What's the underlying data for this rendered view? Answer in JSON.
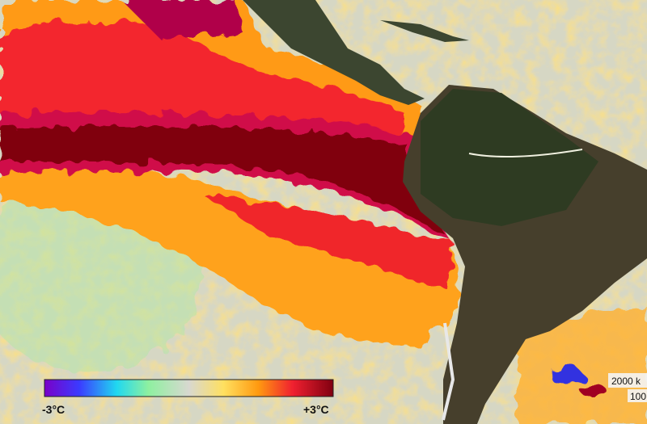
{
  "legend": {
    "min_label": "-3°C",
    "max_label": "+3°C"
  },
  "scale_bar": {
    "distance_label": "2000 k",
    "secondary_label": "100"
  }
}
